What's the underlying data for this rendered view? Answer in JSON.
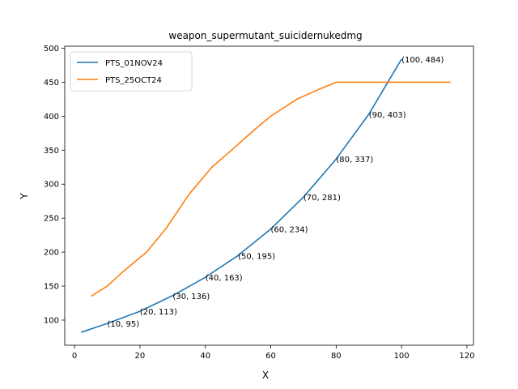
{
  "chart_data": {
    "type": "line",
    "title": "weapon_supermutant_suicidernukedmg",
    "xlabel": "X",
    "ylabel": "Y",
    "xlim": [
      -3,
      122
    ],
    "ylim": [
      63,
      503
    ],
    "xticks": [
      0,
      20,
      40,
      60,
      80,
      100,
      120
    ],
    "yticks": [
      100,
      150,
      200,
      250,
      300,
      350,
      400,
      450,
      500
    ],
    "grid": false,
    "legend_position": "top-left",
    "series": [
      {
        "name": "PTS_01NOV24",
        "color": "#1f77b4",
        "x": [
          2,
          10,
          20,
          30,
          40,
          50,
          60,
          70,
          80,
          90,
          100
        ],
        "y": [
          82,
          95,
          113,
          136,
          163,
          195,
          234,
          281,
          337,
          403,
          484
        ]
      },
      {
        "name": "PTS_25OCT24",
        "color": "#ff7f0e",
        "x": [
          5,
          10,
          15,
          22,
          28,
          35,
          42,
          48,
          55,
          60,
          68,
          75,
          80,
          90,
          100,
          115
        ],
        "y": [
          135,
          150,
          172,
          200,
          235,
          285,
          325,
          350,
          380,
          400,
          425,
          440,
          450,
          450,
          450,
          450
        ]
      }
    ],
    "annotations": [
      {
        "x": 10,
        "y": 95,
        "text": "(10, 95)"
      },
      {
        "x": 20,
        "y": 113,
        "text": "(20, 113)"
      },
      {
        "x": 30,
        "y": 136,
        "text": "(30, 136)"
      },
      {
        "x": 40,
        "y": 163,
        "text": "(40, 163)"
      },
      {
        "x": 50,
        "y": 195,
        "text": "(50, 195)"
      },
      {
        "x": 60,
        "y": 234,
        "text": "(60, 234)"
      },
      {
        "x": 70,
        "y": 281,
        "text": "(70, 281)"
      },
      {
        "x": 80,
        "y": 337,
        "text": "(80, 337)"
      },
      {
        "x": 90,
        "y": 403,
        "text": "(90, 403)"
      },
      {
        "x": 100,
        "y": 484,
        "text": "(100, 484)"
      }
    ]
  }
}
